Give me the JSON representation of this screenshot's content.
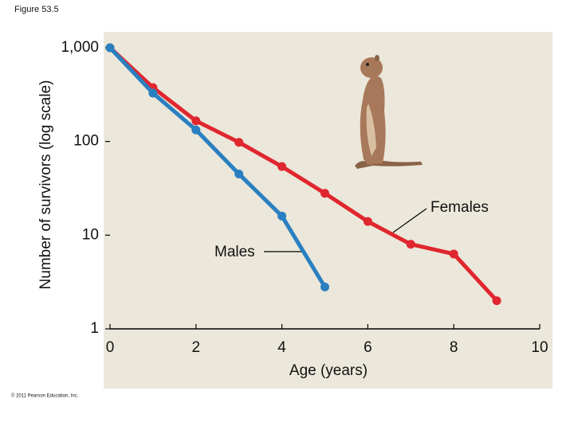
{
  "chart_data": {
    "type": "line",
    "title": "Figure 53.5",
    "xlabel": "Age (years)",
    "ylabel": "Number of survivors (log scale)",
    "yscale": "log",
    "xlim": [
      0,
      10
    ],
    "xticks": [
      0,
      2,
      4,
      6,
      8,
      10
    ],
    "ylim": [
      1,
      1000
    ],
    "yticks": [
      1,
      10,
      100,
      {
        "value": 1000,
        "label": "1,000"
      }
    ],
    "series": [
      {
        "name": "Females",
        "color": "#e0262e",
        "x": [
          0,
          1,
          2,
          3,
          4,
          5,
          6,
          7,
          8,
          9
        ],
        "values": [
          1000,
          376,
          166,
          98,
          54,
          28,
          14,
          8,
          6.3,
          2.0
        ]
      },
      {
        "name": "Males",
        "color": "#2a7fc1",
        "x": [
          0,
          1,
          2,
          3,
          4,
          5
        ],
        "values": [
          1000,
          328,
          133,
          45,
          16,
          2.8
        ]
      }
    ],
    "copyright": "© 2011 Pearson Education, Inc."
  }
}
